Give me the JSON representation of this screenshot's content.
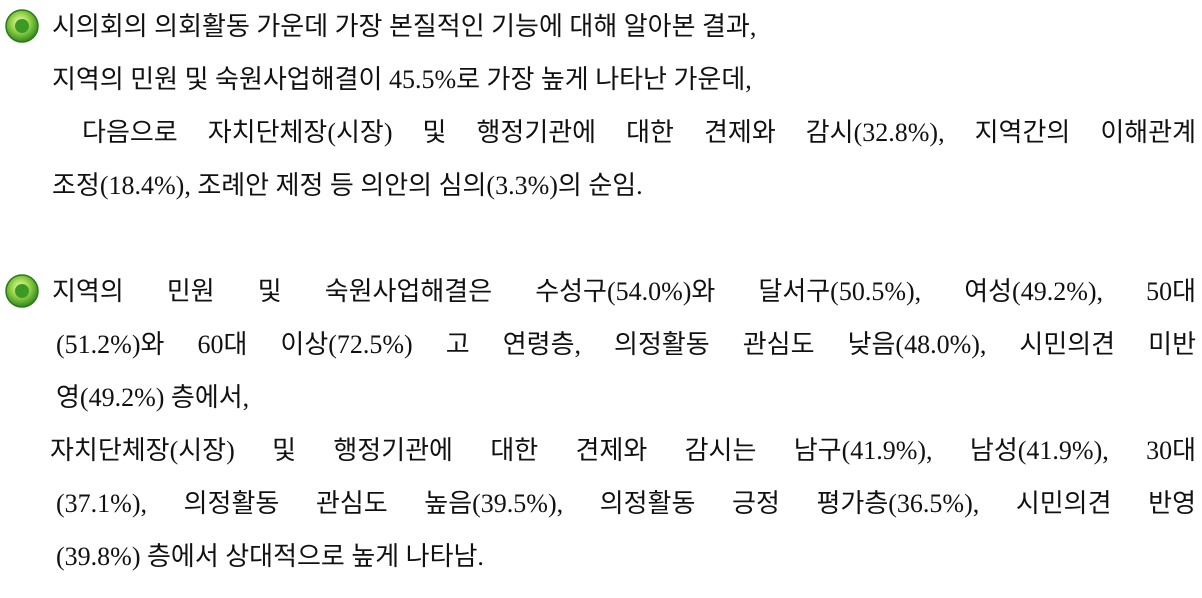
{
  "paragraphs": [
    {
      "lines": [
        "시의회의 의회활동 가운데 가장 본질적인 기능에 대해 알아본 결과,",
        "지역의 민원 및 숙원사업해결이 45.5%로 가장 높게 나타난 가운데,",
        " 다음으로 자치단체장(시장) 및 행정기관에 대한 견제와 감시(32.8%), 지역간의 이해관계",
        "조정(18.4%), 조례안 제정 등 의안의 심의(3.3%)의 순임."
      ]
    },
    {
      "lines": [
        "지역의 민원 및 숙원사업해결은 수성구(54.0%)와 달서구(50.5%), 여성(49.2%), 50대",
        "(51.2%)와 60대 이상(72.5%) 고 연령층, 의정활동 관심도 낮음(48.0%), 시민의견 미반",
        "영(49.2%) 층에서,",
        "자치단체장(시장) 및 행정기관에 대한 견제와 감시는 남구(41.9%), 남성(41.9%), 30대",
        "(37.1%), 의정활동 관심도 높음(39.5%), 의정활동 긍정 평가층(36.5%), 시민의견 반영",
        "(39.8%) 층에서 상대적으로 높게 나타남."
      ]
    }
  ]
}
